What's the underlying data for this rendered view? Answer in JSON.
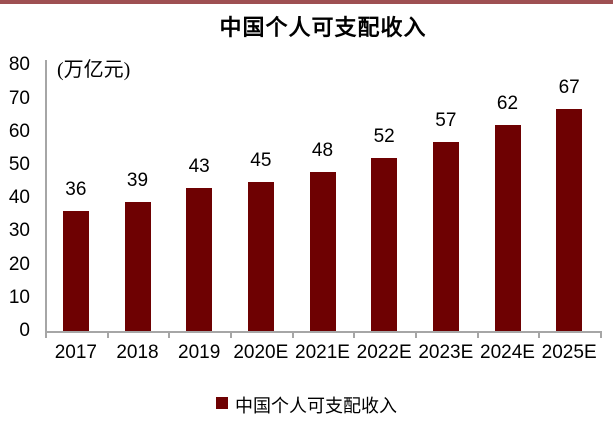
{
  "accent_bar_color": "#9E5052",
  "chart_data": {
    "type": "bar",
    "title": "中国个人可支配收入",
    "unit_label": "(万亿元)",
    "categories": [
      "2017",
      "2018",
      "2019",
      "2020E",
      "2021E",
      "2022E",
      "2023E",
      "2024E",
      "2025E"
    ],
    "values": [
      36,
      39,
      43,
      45,
      48,
      52,
      57,
      62,
      67
    ],
    "xlabel": "",
    "ylabel": "万亿元",
    "ylim": [
      0,
      80
    ],
    "yticks": [
      0,
      10,
      20,
      30,
      40,
      50,
      60,
      70,
      80
    ],
    "grid": false,
    "data_labels_shown": true,
    "bar_color": "#6E0102",
    "axis_color": "#A6A6A6",
    "text_color": "#000000",
    "legend": {
      "position": "bottom",
      "items": [
        {
          "label": "中国个人可支配收入",
          "color": "#6E0102"
        }
      ]
    }
  }
}
